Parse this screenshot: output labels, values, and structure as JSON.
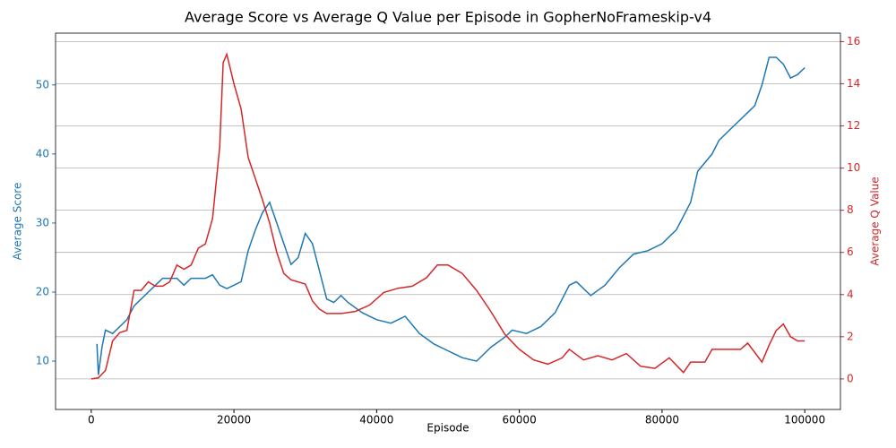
{
  "chart_data": {
    "type": "line",
    "title": "Average Score vs Average Q Value per Episode in GopherNoFrameskip-v4",
    "x_label": "Episode",
    "y_label": "Average Score",
    "y2_label": "Average Q Value",
    "xlim": [
      -5000,
      105000
    ],
    "xticks": [
      0,
      20000,
      40000,
      60000,
      80000,
      100000
    ],
    "ylim": [
      3,
      57.5
    ],
    "yticks": [
      10,
      20,
      30,
      40,
      50
    ],
    "y2lim": [
      -1.45,
      16.4
    ],
    "y2ticks": [
      0,
      2,
      4,
      6,
      8,
      10,
      12,
      14,
      16
    ],
    "grid": "y2",
    "series": [
      {
        "name": "Average Score",
        "color": "#1f77b4",
        "x": [
          800,
          1000,
          1500,
          2000,
          3000,
          4000,
          5000,
          6000,
          7000,
          8000,
          9000,
          10000,
          11000,
          12000,
          13000,
          14000,
          15000,
          16000,
          17000,
          18000,
          19000,
          20000,
          21000,
          22000,
          23000,
          24000,
          25000,
          26000,
          27000,
          28000,
          29000,
          30000,
          31000,
          32000,
          33000,
          34000,
          35000,
          36000,
          38000,
          40000,
          42000,
          44000,
          46000,
          48000,
          50000,
          52000,
          54000,
          56000,
          58000,
          59000,
          61000,
          63000,
          65000,
          67000,
          68000,
          70000,
          72000,
          74000,
          76000,
          78000,
          80000,
          82000,
          84000,
          85000,
          87000,
          88000,
          90000,
          92000,
          93000,
          94000,
          95000,
          96000,
          97000,
          98000,
          99000,
          100000
        ],
        "values": [
          12.5,
          8,
          12,
          14.5,
          14,
          15,
          16,
          18,
          19,
          20,
          21,
          22,
          22,
          22,
          21,
          22,
          22,
          22,
          22.5,
          21,
          20.5,
          21,
          21.5,
          26,
          29,
          31.5,
          33,
          30,
          27,
          24,
          25,
          28.5,
          27,
          23,
          19,
          18.5,
          19.5,
          18.5,
          17,
          16,
          15.5,
          16.5,
          14,
          12.5,
          11.5,
          10.5,
          10,
          12,
          13.5,
          14.5,
          14,
          15,
          17,
          21,
          21.5,
          19.5,
          21,
          23.5,
          25.5,
          26,
          27,
          29,
          33,
          37.5,
          40,
          42,
          44,
          46,
          47,
          50,
          54,
          54,
          53,
          51,
          51.5,
          52.5
        ]
      },
      {
        "name": "Average Q Value",
        "color": "#d62728",
        "axis": "y2",
        "x": [
          0,
          1000,
          2000,
          3000,
          4000,
          5000,
          6000,
          7000,
          8000,
          9000,
          10000,
          11000,
          12000,
          13000,
          14000,
          15000,
          16000,
          17000,
          18000,
          18500,
          19000,
          20000,
          21000,
          22000,
          23000,
          24000,
          25000,
          26000,
          27000,
          28000,
          29000,
          30000,
          31000,
          32000,
          33000,
          35000,
          37000,
          39000,
          41000,
          43000,
          45000,
          47000,
          48500,
          50000,
          52000,
          54000,
          56000,
          58000,
          60000,
          62000,
          64000,
          66000,
          67000,
          69000,
          71000,
          73000,
          75000,
          77000,
          79000,
          81000,
          83000,
          84000,
          86000,
          87000,
          89000,
          91000,
          92000,
          94000,
          95000,
          96000,
          97000,
          98000,
          99000,
          100000
        ],
        "values": [
          0,
          0.05,
          0.4,
          1.8,
          2.2,
          2.3,
          4.2,
          4.2,
          4.6,
          4.4,
          4.4,
          4.6,
          5.4,
          5.2,
          5.4,
          6.2,
          6.4,
          7.6,
          11,
          15,
          15.4,
          14,
          12.8,
          10.5,
          9.5,
          8.5,
          7.4,
          6.0,
          5.0,
          4.7,
          4.6,
          4.5,
          3.7,
          3.3,
          3.1,
          3.1,
          3.2,
          3.5,
          4.1,
          4.3,
          4.4,
          4.8,
          5.4,
          5.4,
          5.0,
          4.2,
          3.2,
          2.1,
          1.4,
          0.9,
          0.7,
          1.0,
          1.4,
          0.9,
          1.1,
          0.9,
          1.2,
          0.6,
          0.5,
          1.0,
          0.3,
          0.8,
          0.8,
          1.4,
          1.4,
          1.4,
          1.7,
          0.8,
          1.6,
          2.3,
          2.6,
          2.0,
          1.8,
          1.8
        ]
      }
    ]
  }
}
